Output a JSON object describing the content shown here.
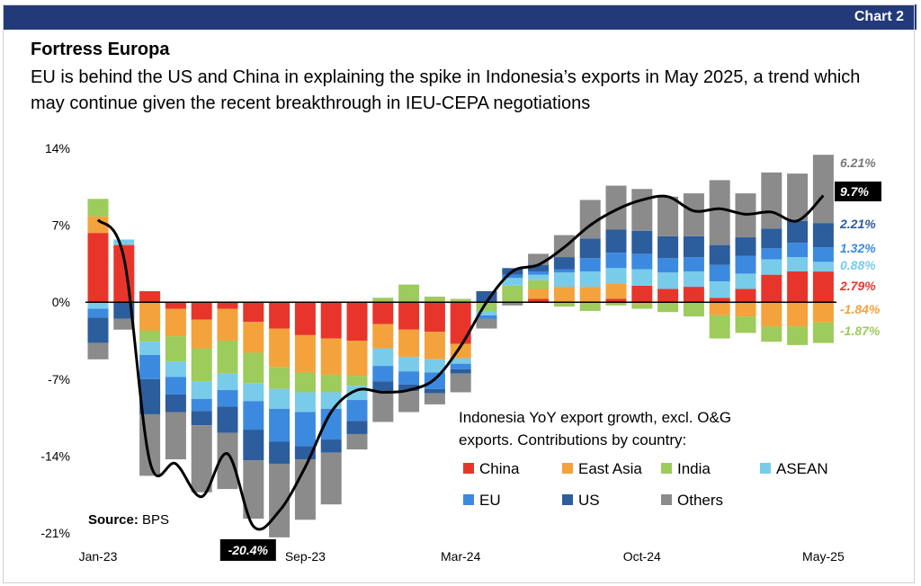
{
  "header": {
    "chart_tag": "Chart 2"
  },
  "title": "Fortress Europa",
  "subtitle": "EU is behind the US and China in explaining the spike in Indonesia’s exports in May 2025, a trend which may continue given the recent breakthrough in IEU-CEPA negotiations",
  "source_label": "Source:",
  "source_value": "BPS",
  "colors": {
    "China": "#E8352B",
    "East Asia": "#F4A23C",
    "India": "#9DCB5C",
    "ASEAN": "#79CBEA",
    "EU": "#3B8AE0",
    "US": "#2C5D9C",
    "Others": "#8B8B8B",
    "line": "#000000",
    "header": "#233A7A"
  },
  "chart_data": {
    "type": "bar",
    "stacked": true,
    "title": "Fortress Europa",
    "legend_title": "Indonesia YoY export growth, excl. O&G exports. Contributions by country:",
    "legend_placement": "bottom-right",
    "ylim": [
      -21,
      14
    ],
    "yticks": [
      "14%",
      "7%",
      "0%",
      "-7%",
      "-14%",
      "-21%"
    ],
    "ytick_values": [
      14,
      7,
      0,
      -7,
      -14,
      -21
    ],
    "categories": [
      "Jan-23",
      "Feb-23",
      "Mar-23",
      "Apr-23",
      "May-23",
      "Jun-23",
      "Jul-23",
      "Aug-23",
      "Sep-23",
      "Oct-23",
      "Nov-23",
      "Dec-23",
      "Jan-24",
      "Feb-24",
      "Mar-24",
      "Apr-24",
      "May-24",
      "Jun-24",
      "Jul-24",
      "Aug-24",
      "Sep-24",
      "Oct-24",
      "Nov-24",
      "Dec-24",
      "Jan-25",
      "Feb-25",
      "Mar-25",
      "Apr-25",
      "May-25"
    ],
    "xtick_labels": [
      {
        "index": 0,
        "label": "Jan-23"
      },
      {
        "index": 8,
        "label": "Sep-23"
      },
      {
        "index": 14,
        "label": "Mar-24"
      },
      {
        "index": 21,
        "label": "Oct-24"
      },
      {
        "index": 28,
        "label": "May-25"
      }
    ],
    "series": [
      {
        "name": "China",
        "values": [
          6.3,
          5.2,
          1.0,
          -0.6,
          -1.6,
          -0.6,
          -1.8,
          -2.4,
          -3.0,
          -3.3,
          -3.5,
          -2.0,
          -2.5,
          -2.7,
          -3.8,
          0,
          0,
          0.3,
          0,
          0,
          0.3,
          1.5,
          1.2,
          1.4,
          0.4,
          1.2,
          2.5,
          2.8,
          2.79
        ]
      },
      {
        "name": "East Asia",
        "values": [
          1.5,
          0,
          -2.6,
          -2.5,
          -2.6,
          -2.9,
          -2.8,
          -3.5,
          -3.4,
          -3.3,
          -3.2,
          -2.2,
          -2.5,
          -2.5,
          -1.3,
          0,
          0,
          0.9,
          1.4,
          1.4,
          1.4,
          -0.2,
          0,
          0,
          -1.2,
          -1.3,
          -2.2,
          -2.2,
          -1.84
        ]
      },
      {
        "name": "India",
        "values": [
          1.6,
          0,
          -1.0,
          -2.3,
          -3.0,
          -3.0,
          -2.8,
          -2.0,
          -1.8,
          -1.6,
          -0.9,
          0.4,
          1.6,
          0.5,
          0.3,
          -0.8,
          1.5,
          0.8,
          -0.4,
          -0.8,
          -0.3,
          -0.4,
          -0.9,
          -1.3,
          -2.1,
          -1.5,
          -1.4,
          -1.7,
          -1.87
        ]
      },
      {
        "name": "ASEAN",
        "values": [
          -0.6,
          0.5,
          -1.2,
          -1.4,
          -1.6,
          -1.5,
          -1.6,
          -1.8,
          -1.8,
          -1.5,
          -1.3,
          -1.6,
          -1.3,
          -1.2,
          -0.5,
          -0.4,
          0.7,
          0.5,
          1.3,
          1.4,
          1.4,
          1.5,
          1.5,
          1.4,
          1.5,
          1.4,
          1.4,
          1.3,
          0.88
        ]
      },
      {
        "name": "EU",
        "values": [
          -0.8,
          0,
          -2.2,
          -1.6,
          -1.1,
          -1.5,
          -2.6,
          -3.0,
          -3.1,
          -2.8,
          -1.9,
          -1.4,
          -1.2,
          -1.5,
          -0.5,
          -0.3,
          0.3,
          0.3,
          0.3,
          1.2,
          1.4,
          1.4,
          1.3,
          1.3,
          1.5,
          1.6,
          1.0,
          1.3,
          1.32
        ]
      },
      {
        "name": "US",
        "values": [
          -2.3,
          -1.5,
          -3.2,
          -1.6,
          -1.3,
          -2.4,
          -2.8,
          -2.0,
          -1.2,
          -1.2,
          -1.2,
          -0.9,
          -0.6,
          -0.4,
          -0.4,
          1.0,
          0.6,
          0.6,
          1.1,
          1.8,
          2.1,
          2.1,
          2.0,
          1.9,
          1.8,
          1.7,
          1.8,
          2.0,
          2.21
        ]
      },
      {
        "name": "Others",
        "values": [
          -1.5,
          -1.0,
          -5.6,
          -4.3,
          -6.1,
          -5.1,
          -5.3,
          -6.7,
          -5.5,
          -4.7,
          -1.4,
          -2.8,
          -1.9,
          -1.0,
          -1.7,
          -0.9,
          -0.3,
          1.0,
          2.0,
          3.5,
          4.0,
          3.8,
          3.6,
          3.9,
          5.9,
          4.0,
          5.1,
          4.3,
          6.21
        ]
      }
    ],
    "total_line": {
      "name": "Total",
      "values": [
        7.5,
        4.0,
        -14.5,
        -14.7,
        -17.7,
        -13.8,
        -20.4,
        -19.0,
        -15.0,
        -10.0,
        -8.0,
        -8.2,
        -8.0,
        -7.0,
        -4.0,
        0,
        2.8,
        3.4,
        5.0,
        7.0,
        8.4,
        9.3,
        9.6,
        8.3,
        8.5,
        8.0,
        8.2,
        7.4,
        9.7
      ]
    },
    "end_labels": [
      {
        "series": "Others",
        "text": "6.21%"
      },
      {
        "series": "Total",
        "text": "9.7%"
      },
      {
        "series": "US",
        "text": "2.21%"
      },
      {
        "series": "EU",
        "text": "1.32%"
      },
      {
        "series": "ASEAN",
        "text": "0.88%"
      },
      {
        "series": "China",
        "text": "2.79%"
      },
      {
        "series": "East Asia",
        "text": "-1.84%"
      },
      {
        "series": "India",
        "text": "-1.87%"
      }
    ],
    "annotation_min": {
      "index": 6,
      "text": "-20.4%"
    },
    "legend_order": [
      "China",
      "East Asia",
      "India",
      "ASEAN",
      "EU",
      "US",
      "Others"
    ]
  }
}
